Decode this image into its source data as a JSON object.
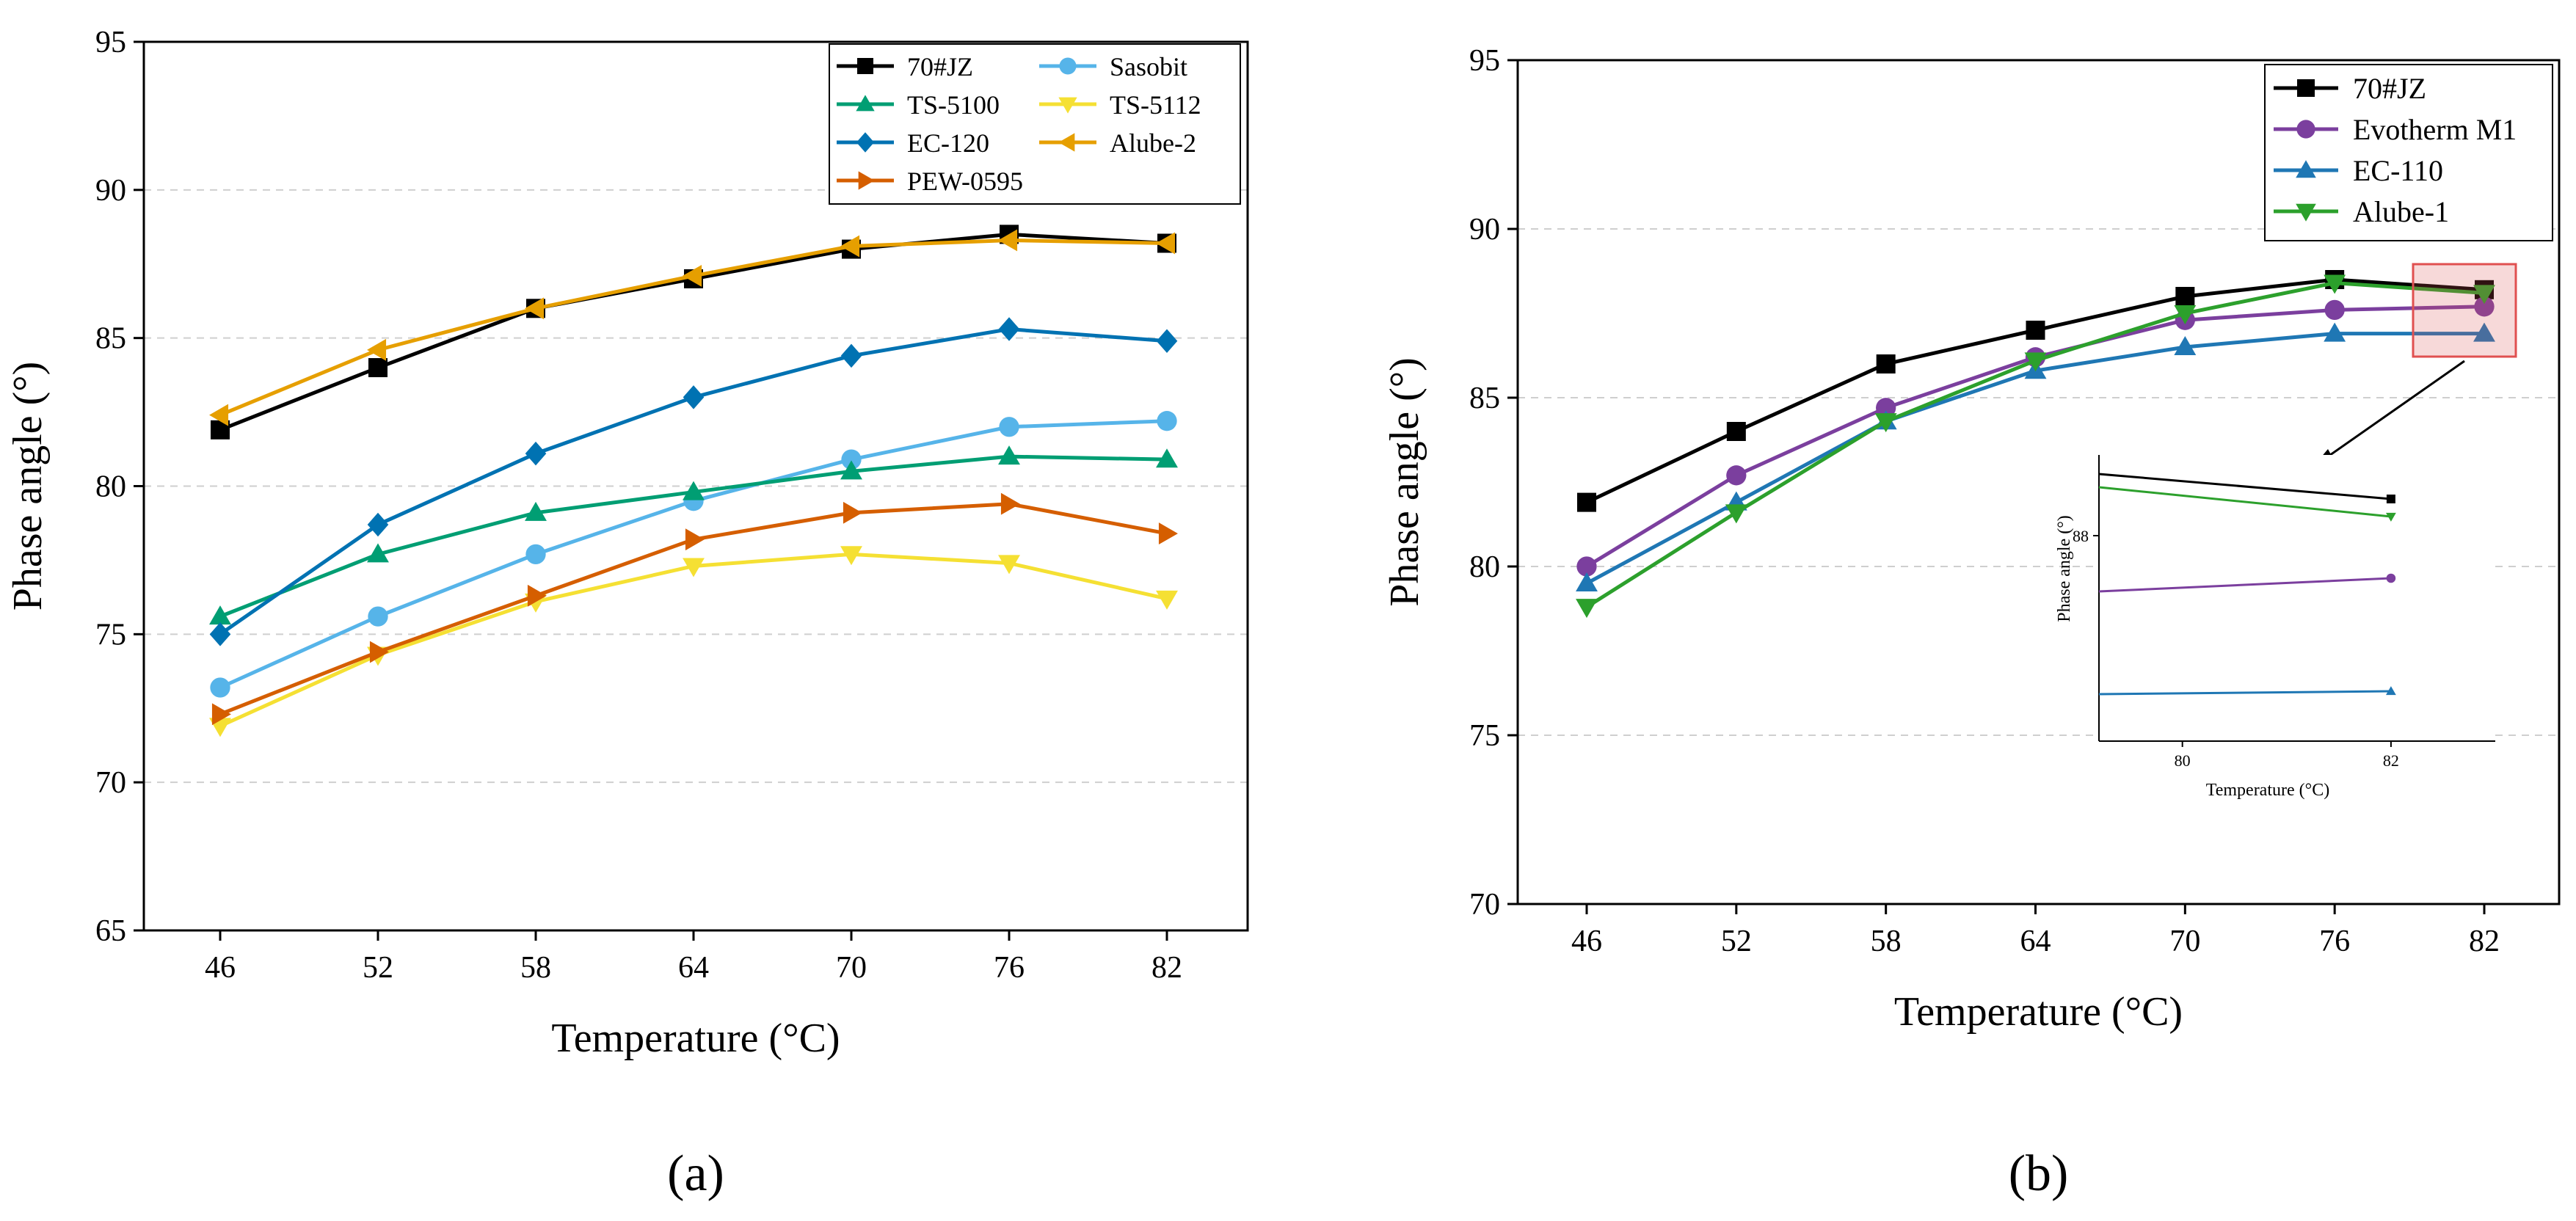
{
  "chart_data": [
    {
      "type": "line",
      "panel_label": "(a)",
      "xlabel": "Temperature (°C)",
      "ylabel": "Phase angle (°)",
      "categories": [
        "46",
        "52",
        "58",
        "64",
        "70",
        "76",
        "82"
      ],
      "ylim": [
        65,
        95
      ],
      "yticks": [
        "65",
        "70",
        "75",
        "80",
        "85",
        "90",
        "95"
      ],
      "grid": "horizontal-dashed",
      "legend_position": "top-right",
      "series": [
        {
          "name": "70#JZ",
          "marker": "square",
          "color": "#000000",
          "values": [
            81.9,
            84.0,
            86.0,
            87.0,
            88.0,
            88.5,
            88.2
          ]
        },
        {
          "name": "Sasobit",
          "marker": "circle",
          "color": "#56B4E9",
          "values": [
            73.2,
            75.6,
            77.7,
            79.5,
            80.9,
            82.0,
            82.2
          ]
        },
        {
          "name": "TS-5100",
          "marker": "triangle-up",
          "color": "#009E73",
          "values": [
            75.6,
            77.7,
            79.1,
            79.8,
            80.5,
            81.0,
            80.9
          ]
        },
        {
          "name": "TS-5112",
          "marker": "triangle-down",
          "color": "#F5E033",
          "values": [
            71.9,
            74.3,
            76.1,
            77.3,
            77.7,
            77.4,
            76.2
          ]
        },
        {
          "name": "EC-120",
          "marker": "diamond",
          "color": "#0072B2",
          "values": [
            75.0,
            78.7,
            81.1,
            83.0,
            84.4,
            85.3,
            84.9
          ]
        },
        {
          "name": "Alube-2",
          "marker": "triangle-left",
          "color": "#E69F00",
          "values": [
            82.4,
            84.6,
            86.0,
            87.1,
            88.1,
            88.3,
            88.2
          ]
        },
        {
          "name": "PEW-0595",
          "marker": "triangle-right",
          "color": "#D55E00",
          "values": [
            72.3,
            74.4,
            76.3,
            78.2,
            79.1,
            79.4,
            78.4
          ]
        }
      ]
    },
    {
      "type": "line",
      "panel_label": "(b)",
      "xlabel": "Temperature (°C)",
      "ylabel": "Phase angle (°)",
      "categories": [
        "46",
        "52",
        "58",
        "64",
        "70",
        "76",
        "82"
      ],
      "ylim": [
        70,
        95
      ],
      "yticks": [
        "70",
        "75",
        "80",
        "85",
        "90",
        "95"
      ],
      "grid": "horizontal-dashed",
      "legend_position": "top-right",
      "series": [
        {
          "name": "70#JZ",
          "marker": "square",
          "color": "#000000",
          "values": [
            81.9,
            84.0,
            86.0,
            87.0,
            88.0,
            88.5,
            88.2
          ]
        },
        {
          "name": "Evotherm M1",
          "marker": "circle",
          "color": "#7B3F9E",
          "values": [
            80.0,
            82.7,
            84.7,
            86.2,
            87.3,
            87.6,
            87.7
          ]
        },
        {
          "name": "EC-110",
          "marker": "triangle-up",
          "color": "#1F77B4",
          "values": [
            79.5,
            81.9,
            84.3,
            85.8,
            86.5,
            86.9,
            86.9
          ]
        },
        {
          "name": "Alube-1",
          "marker": "triangle-down",
          "color": "#2CA02C",
          "values": [
            78.8,
            81.6,
            84.3,
            86.1,
            87.5,
            88.4,
            88.1
          ]
        }
      ],
      "inset": {
        "xlabel": "Temperature (°C)",
        "ylabel": "Phase angle (°)",
        "xticks": [
          "80",
          "82"
        ],
        "ytick": "88",
        "x_range": [
          79.2,
          83.0
        ],
        "y_range": [
          86.6,
          88.55
        ],
        "series": [
          {
            "name": "70#JZ",
            "color": "#000000",
            "x": [
              79.2,
              82
            ],
            "y": [
              88.42,
              88.25
            ]
          },
          {
            "name": "Alube-1",
            "color": "#2CA02C",
            "x": [
              79.2,
              82
            ],
            "y": [
              88.33,
              88.13
            ]
          },
          {
            "name": "Evotherm M1",
            "color": "#7B3F9E",
            "x": [
              79.2,
              82
            ],
            "y": [
              87.62,
              87.71
            ]
          },
          {
            "name": "EC-110",
            "color": "#1F77B4",
            "x": [
              79.2,
              82
            ],
            "y": [
              86.92,
              86.94
            ]
          }
        ]
      }
    }
  ]
}
